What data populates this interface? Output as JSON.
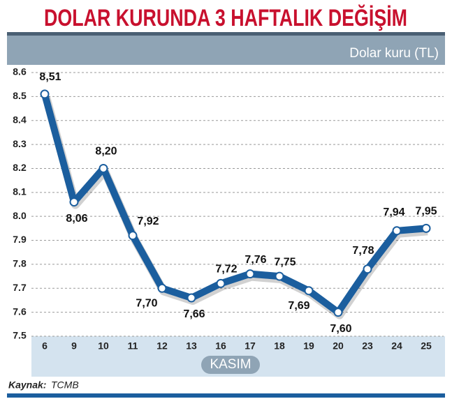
{
  "chart_data": {
    "type": "line",
    "title": "DOLAR KURUNDA 3 HAFTALIK DEĞİŞİM",
    "y_label": "Dolar kuru (TL)",
    "x_label": "KASIM",
    "source_label": "Kaynak:",
    "source": "TCMB",
    "categories": [
      "6",
      "9",
      "10",
      "11",
      "12",
      "13",
      "16",
      "17",
      "18",
      "19",
      "20",
      "23",
      "24",
      "25"
    ],
    "values": [
      8.51,
      8.06,
      8.2,
      7.92,
      7.7,
      7.66,
      7.72,
      7.76,
      7.75,
      7.69,
      7.6,
      7.78,
      7.94,
      7.95
    ],
    "value_labels": [
      "8,51",
      "8,06",
      "8,20",
      "7,92",
      "7,70",
      "7,66",
      "7,72",
      "7,76",
      "7,75",
      "7,69",
      "7,60",
      "7,78",
      "7,94",
      "7,95"
    ],
    "color": "#1b5e9e",
    "ylim": [
      7.5,
      8.6
    ],
    "yticks": [
      7.5,
      7.6,
      7.7,
      7.8,
      7.9,
      {
        "value": 8,
        "label": "8.0"
      },
      8.1,
      8.2,
      8.3,
      8.4,
      8.5,
      8.6
    ],
    "grid": true
  }
}
